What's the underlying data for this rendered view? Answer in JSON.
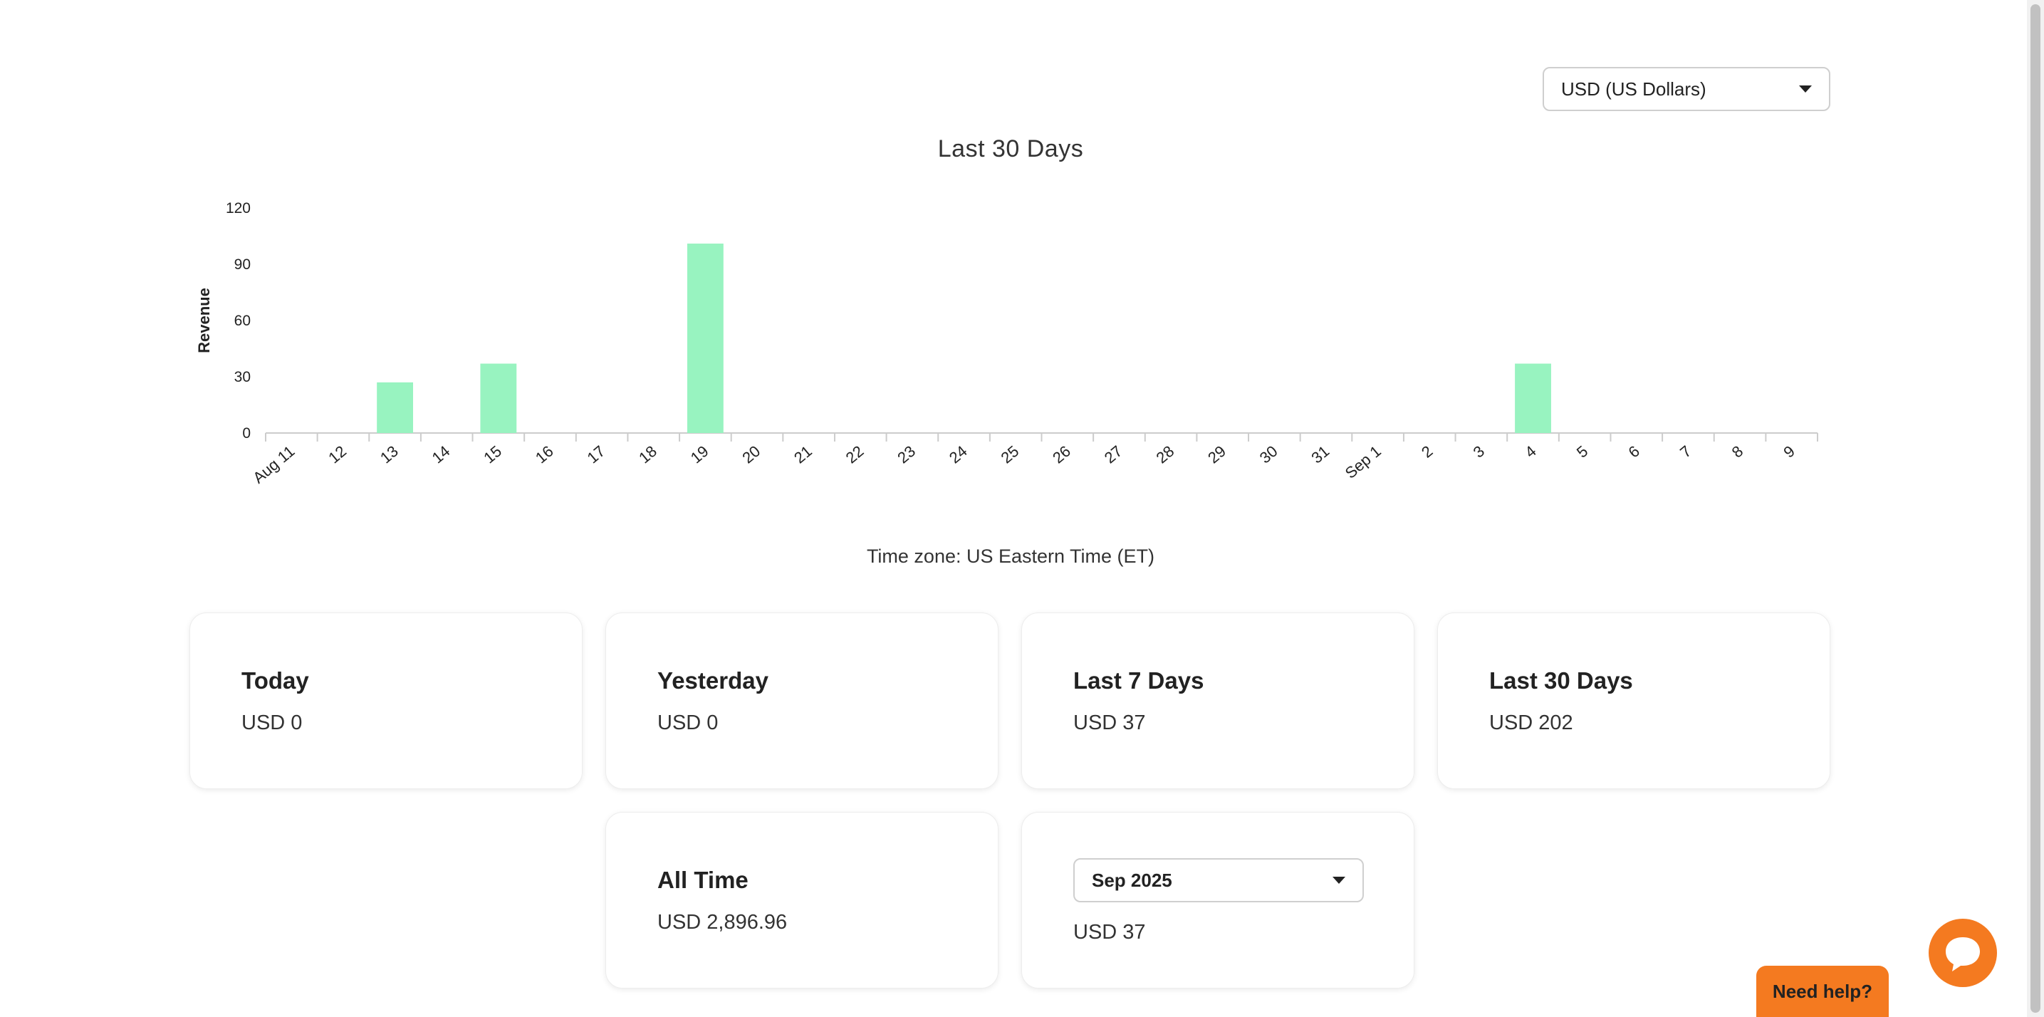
{
  "currency_select": {
    "value": "USD (US Dollars)"
  },
  "chart_data": {
    "type": "bar",
    "title": "Last 30 Days",
    "xlabel": "",
    "ylabel": "Revenue",
    "ylim": [
      0,
      120
    ],
    "yticks": [
      0,
      30,
      60,
      90,
      120
    ],
    "categories": [
      "Aug 11",
      "12",
      "13",
      "14",
      "15",
      "16",
      "17",
      "18",
      "19",
      "20",
      "21",
      "22",
      "23",
      "24",
      "25",
      "26",
      "27",
      "28",
      "29",
      "30",
      "31",
      "Sep 1",
      "2",
      "3",
      "4",
      "5",
      "6",
      "7",
      "8",
      "9"
    ],
    "values": [
      0,
      0,
      27,
      0,
      37,
      0,
      0,
      0,
      101,
      0,
      0,
      0,
      0,
      0,
      0,
      0,
      0,
      0,
      0,
      0,
      0,
      0,
      0,
      0,
      37,
      0,
      0,
      0,
      0,
      0
    ],
    "bar_color": "#98f3c0",
    "grid": false,
    "legend": "none"
  },
  "timezone_text": "Time zone: US Eastern Time (ET)",
  "cards": {
    "today": {
      "title": "Today",
      "value": "USD 0"
    },
    "yesterday": {
      "title": "Yesterday",
      "value": "USD 0"
    },
    "last7": {
      "title": "Last 7 Days",
      "value": "USD 37"
    },
    "last30": {
      "title": "Last 30 Days",
      "value": "USD 202"
    },
    "alltime": {
      "title": "All Time",
      "value": "USD 2,896.96"
    },
    "month": {
      "select_value": "Sep 2025",
      "value": "USD 37"
    }
  },
  "help": {
    "label": "Need help?"
  },
  "colors": {
    "accent": "#f47a20",
    "bar": "#98f3c0"
  },
  "icons": {
    "chat": "chat-bubble-icon",
    "dropdown": "chevron-down-icon"
  }
}
